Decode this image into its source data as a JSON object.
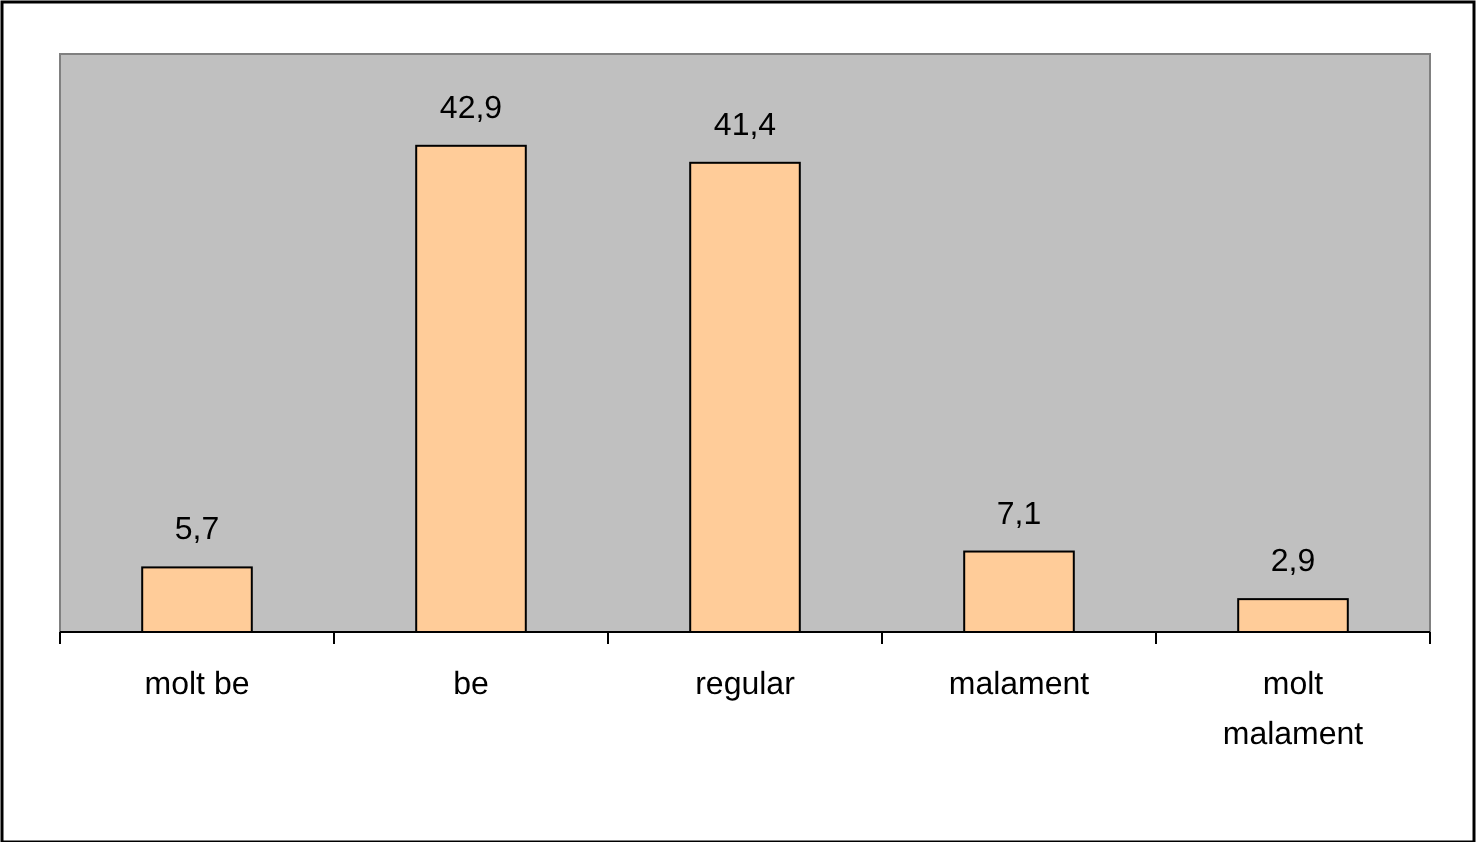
{
  "chart_data": {
    "type": "bar",
    "categories": [
      "molt be",
      "be",
      "regular",
      "malament",
      "molt malament"
    ],
    "values": [
      5.7,
      42.9,
      41.4,
      7.1,
      2.9
    ],
    "color": "#ffcc99",
    "value_labels": [
      "5,7",
      "42,9",
      "41,4",
      "7,1",
      "2,9"
    ],
    "ylim": [
      0,
      51
    ],
    "tick_labels": "x"
  }
}
